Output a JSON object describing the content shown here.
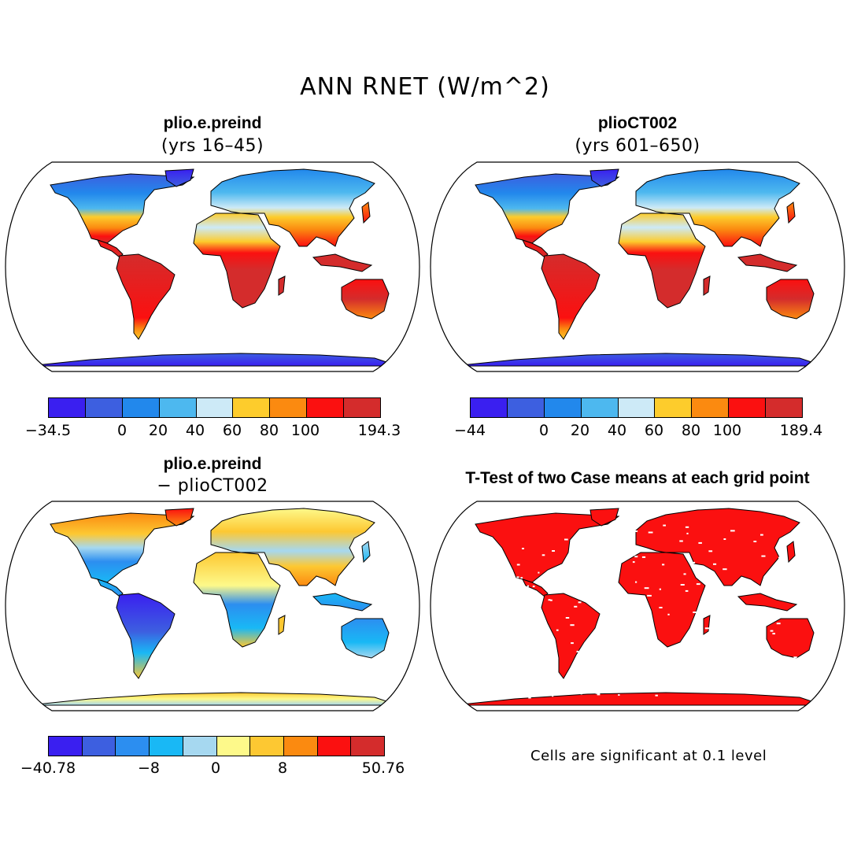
{
  "title": "ANN RNET (W/m^2)",
  "panels": [
    {
      "id": "p1",
      "title": "plio.e.preind",
      "subtitle": "(yrs 16–45)",
      "colorbar": {
        "colors": [
          "#3a1ff0",
          "#3d5fe0",
          "#2288ec",
          "#4db8ef",
          "#cdeaf7",
          "#fdcc2c",
          "#fb8a10",
          "#fb1010",
          "#d42c2c"
        ],
        "tick_labels": [
          "−34.5",
          "0",
          "20",
          "40",
          "60",
          "80",
          "100",
          "194.3"
        ]
      }
    },
    {
      "id": "p2",
      "title": "plioCT002",
      "subtitle": "(yrs 601–650)",
      "colorbar": {
        "colors": [
          "#3a1ff0",
          "#3d5fe0",
          "#2288ec",
          "#4db8ef",
          "#cdeaf7",
          "#fdcc2c",
          "#fb8a10",
          "#fb1010",
          "#d42c2c"
        ],
        "tick_labels": [
          "−44",
          "0",
          "20",
          "40",
          "60",
          "80",
          "100",
          "189.4"
        ]
      }
    },
    {
      "id": "p3",
      "title": "plio.e.preind",
      "subtitle": "− plioCT002",
      "colorbar": {
        "colors": [
          "#3a1ff0",
          "#3d5fe0",
          "#2c8ef0",
          "#19b8f5",
          "#a6d8f0",
          "#fdf98a",
          "#fdc832",
          "#fb8a10",
          "#fb1010",
          "#d42c2c"
        ],
        "tick_labels": [
          "−40.78",
          "−8",
          "0",
          "8",
          "50.76"
        ]
      }
    },
    {
      "id": "p4",
      "title": "T-Test of two Case means at each grid point",
      "note": "Cells are significant at 0.1 level",
      "significant_color": "#fb1010"
    }
  ]
}
